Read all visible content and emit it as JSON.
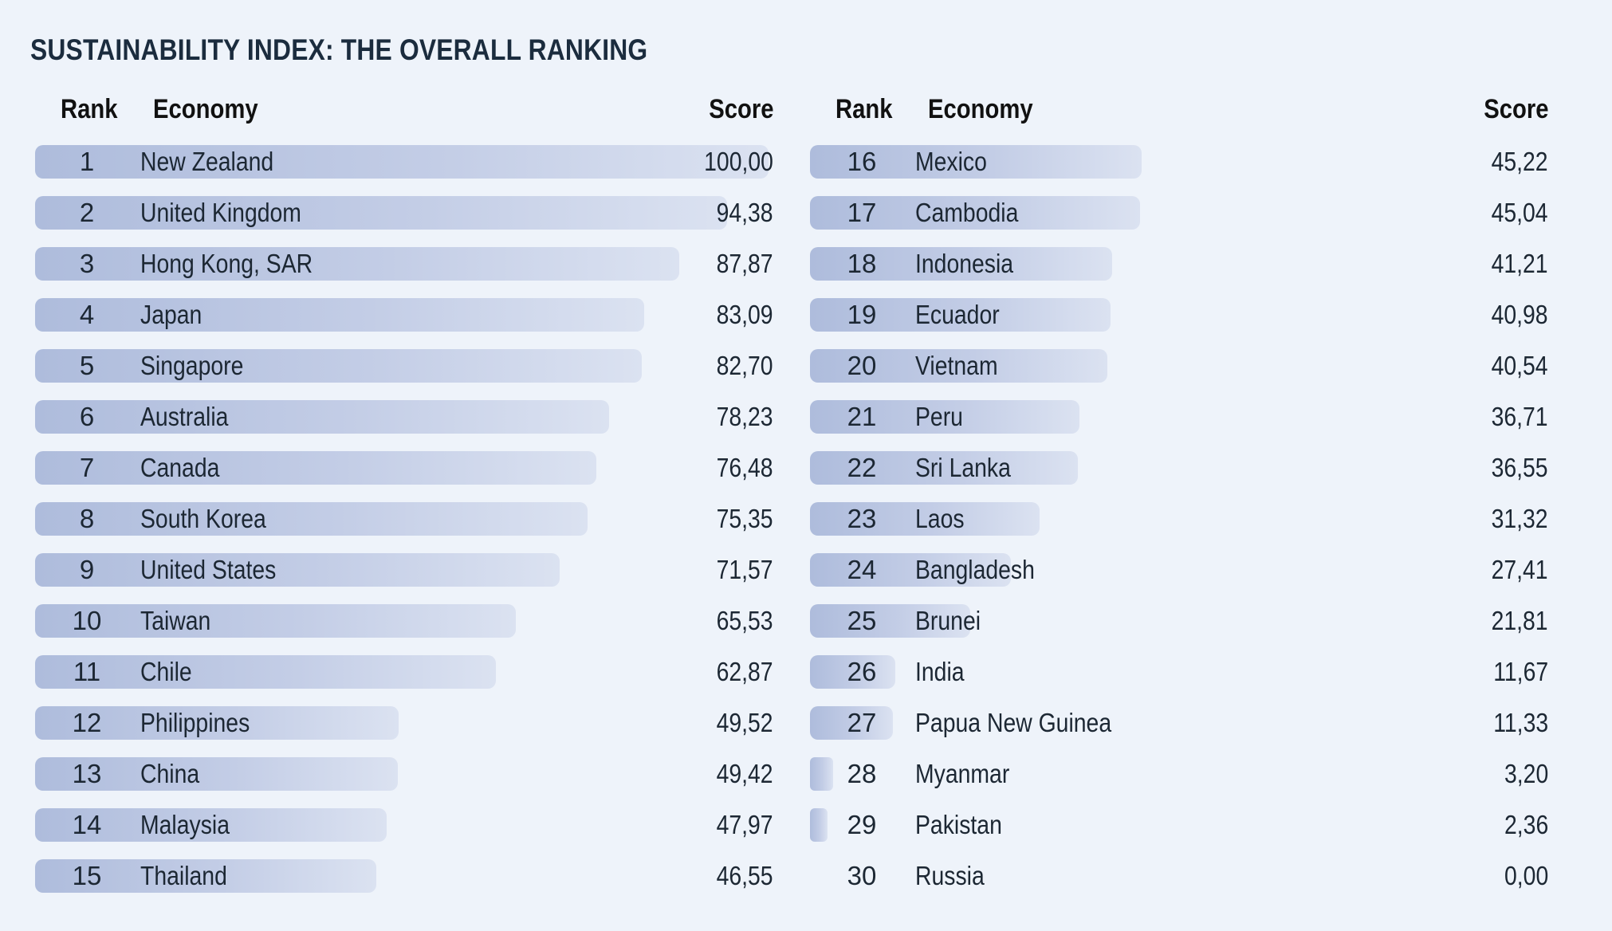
{
  "title": "SUSTAINABILITY INDEX: THE OVERALL RANKING",
  "headers": {
    "rank": "Rank",
    "economy": "Economy",
    "score": "Score"
  },
  "colors": {
    "background": "#eef3fa",
    "bar_dark": "#aebcdc",
    "bar_light": "#dbe2f1",
    "title": "#1b2c3e"
  },
  "chart_data": {
    "type": "bar",
    "title": "SUSTAINABILITY INDEX: THE OVERALL RANKING",
    "xlabel": "",
    "ylabel": "",
    "ylim": [
      0,
      100
    ],
    "rows": [
      {
        "rank": "1",
        "economy": "New Zealand",
        "score": "100,00",
        "value": 100.0
      },
      {
        "rank": "2",
        "economy": "United Kingdom",
        "score": "94,38",
        "value": 94.38
      },
      {
        "rank": "3",
        "economy": "Hong Kong, SAR",
        "score": "87,87",
        "value": 87.87
      },
      {
        "rank": "4",
        "economy": "Japan",
        "score": "83,09",
        "value": 83.09
      },
      {
        "rank": "5",
        "economy": "Singapore",
        "score": "82,70",
        "value": 82.7
      },
      {
        "rank": "6",
        "economy": "Australia",
        "score": "78,23",
        "value": 78.23
      },
      {
        "rank": "7",
        "economy": "Canada",
        "score": "76,48",
        "value": 76.48
      },
      {
        "rank": "8",
        "economy": "South Korea",
        "score": "75,35",
        "value": 75.35
      },
      {
        "rank": "9",
        "economy": "United States",
        "score": "71,57",
        "value": 71.57
      },
      {
        "rank": "10",
        "economy": "Taiwan",
        "score": "65,53",
        "value": 65.53
      },
      {
        "rank": "11",
        "economy": "Chile",
        "score": "62,87",
        "value": 62.87
      },
      {
        "rank": "12",
        "economy": "Philippines",
        "score": "49,52",
        "value": 49.52
      },
      {
        "rank": "13",
        "economy": "China",
        "score": "49,42",
        "value": 49.42
      },
      {
        "rank": "14",
        "economy": "Malaysia",
        "score": "47,97",
        "value": 47.97
      },
      {
        "rank": "15",
        "economy": "Thailand",
        "score": "46,55",
        "value": 46.55
      },
      {
        "rank": "16",
        "economy": "Mexico",
        "score": "45,22",
        "value": 45.22
      },
      {
        "rank": "17",
        "economy": "Cambodia",
        "score": "45,04",
        "value": 45.04
      },
      {
        "rank": "18",
        "economy": "Indonesia",
        "score": "41,21",
        "value": 41.21
      },
      {
        "rank": "19",
        "economy": "Ecuador",
        "score": "40,98",
        "value": 40.98
      },
      {
        "rank": "20",
        "economy": "Vietnam",
        "score": "40,54",
        "value": 40.54
      },
      {
        "rank": "21",
        "economy": "Peru",
        "score": "36,71",
        "value": 36.71
      },
      {
        "rank": "22",
        "economy": "Sri Lanka",
        "score": "36,55",
        "value": 36.55
      },
      {
        "rank": "23",
        "economy": "Laos",
        "score": "31,32",
        "value": 31.32
      },
      {
        "rank": "24",
        "economy": "Bangladesh",
        "score": "27,41",
        "value": 27.41
      },
      {
        "rank": "25",
        "economy": "Brunei",
        "score": "21,81",
        "value": 21.81
      },
      {
        "rank": "26",
        "economy": "India",
        "score": "11,67",
        "value": 11.67
      },
      {
        "rank": "27",
        "economy": "Papua New Guinea",
        "score": "11,33",
        "value": 11.33
      },
      {
        "rank": "28",
        "economy": "Myanmar",
        "score": "3,20",
        "value": 3.2
      },
      {
        "rank": "29",
        "economy": "Pakistan",
        "score": "2,36",
        "value": 2.36
      },
      {
        "rank": "30",
        "economy": "Russia",
        "score": "0,00",
        "value": 0.0
      }
    ]
  }
}
